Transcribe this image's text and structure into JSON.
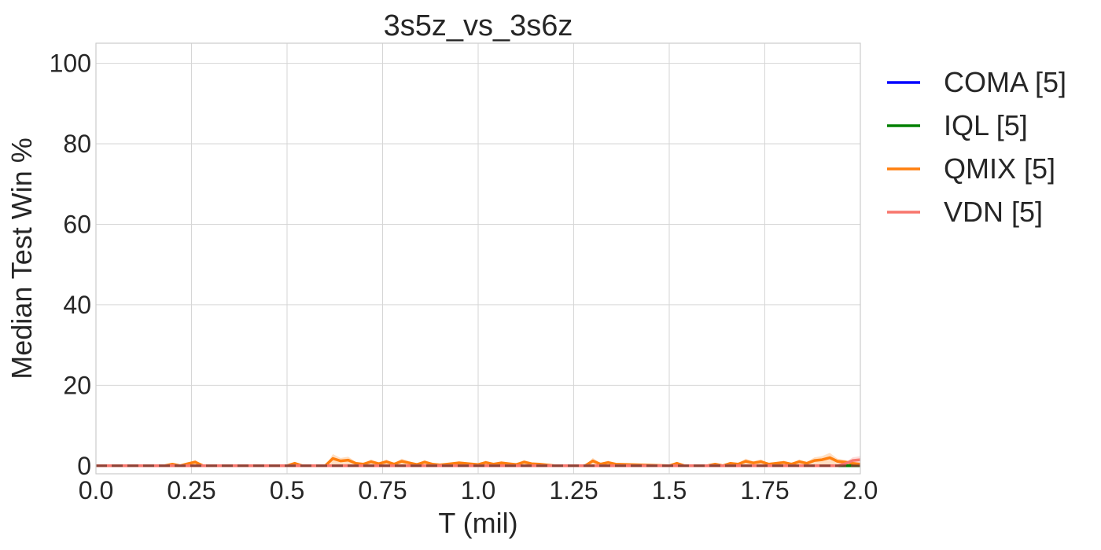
{
  "chart_data": {
    "type": "line",
    "title": "3s5z_vs_3s6z",
    "xlabel": "T (mil)",
    "ylabel": "Median Test Win %",
    "xlim": [
      0,
      2.0
    ],
    "ylim": [
      -2,
      105
    ],
    "xticks": [
      0.0,
      0.25,
      0.5,
      0.75,
      1.0,
      1.25,
      1.5,
      1.75,
      2.0
    ],
    "xtick_labels": [
      "0.0",
      "0.25",
      "0.5",
      "0.75",
      "1.0",
      "1.25",
      "1.5",
      "1.75",
      "2.0"
    ],
    "yticks": [
      0,
      20,
      40,
      60,
      80,
      100
    ],
    "ytick_labels": [
      "0",
      "20",
      "40",
      "60",
      "80",
      "100"
    ],
    "grid": true,
    "legend_position": "outside-right",
    "series": [
      {
        "name": "COMA [5]",
        "color": "#0000ff",
        "x": [
          0.0,
          2.0
        ],
        "y": [
          0,
          0
        ]
      },
      {
        "name": "IQL [5]",
        "color": "#008000",
        "x": [
          0.0,
          2.0
        ],
        "y": [
          0,
          0
        ]
      },
      {
        "name": "QMIX [5]",
        "color": "#ff7f0e",
        "x": [
          0.0,
          0.18,
          0.2,
          0.22,
          0.24,
          0.26,
          0.28,
          0.5,
          0.52,
          0.54,
          0.6,
          0.62,
          0.64,
          0.66,
          0.68,
          0.7,
          0.72,
          0.74,
          0.76,
          0.78,
          0.8,
          0.82,
          0.84,
          0.86,
          0.88,
          0.9,
          0.95,
          1.0,
          1.02,
          1.04,
          1.06,
          1.1,
          1.12,
          1.14,
          1.16,
          1.2,
          1.28,
          1.3,
          1.32,
          1.34,
          1.36,
          1.5,
          1.52,
          1.54,
          1.6,
          1.62,
          1.64,
          1.66,
          1.68,
          1.7,
          1.72,
          1.74,
          1.76,
          1.8,
          1.82,
          1.84,
          1.86,
          1.88,
          1.9,
          1.92,
          1.94,
          1.96,
          1.98,
          2.0
        ],
        "y": [
          0,
          0,
          0.4,
          0,
          0.5,
          0.9,
          0,
          0,
          0.6,
          0,
          0,
          1.8,
          1.2,
          1.4,
          0.6,
          0.4,
          1.0,
          0.5,
          1.0,
          0.4,
          1.1,
          0.7,
          0.3,
          0.9,
          0.4,
          0.2,
          0.7,
          0.3,
          0.8,
          0.4,
          0.7,
          0.3,
          0.9,
          0.5,
          0.4,
          0,
          0,
          1.2,
          0.4,
          0.8,
          0.4,
          0,
          0.6,
          0,
          0,
          0.4,
          0,
          0.6,
          0.4,
          1.1,
          0.7,
          1.0,
          0.4,
          0.8,
          0.4,
          1.0,
          0.6,
          1.3,
          1.5,
          2.0,
          1.1,
          0.9,
          0.6,
          0.4
        ]
      },
      {
        "name": "VDN [5]",
        "color": "#f8766d",
        "x": [
          0.0,
          1.94,
          1.96,
          1.98,
          2.0
        ],
        "y": [
          0,
          0,
          0.5,
          1.3,
          1.5
        ]
      }
    ]
  }
}
